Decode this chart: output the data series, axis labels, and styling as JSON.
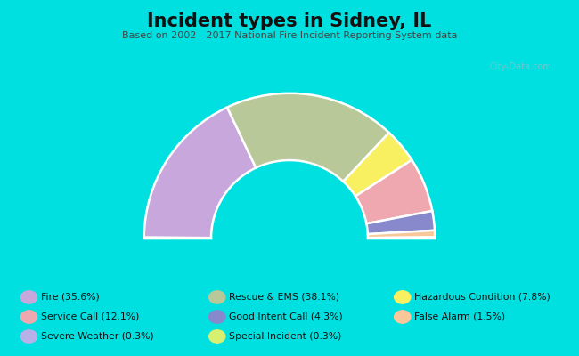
{
  "title": "Incident types in Sidney, IL",
  "subtitle": "Based on 2002 - 2017 National Fire Incident Reporting System data",
  "background_color": "#00e0e0",
  "chart_bg_color": "#e8edd8",
  "segment_order": [
    {
      "label": "Severe Weather",
      "value": 0.3,
      "color": "#b8b0e8"
    },
    {
      "label": "Fire",
      "value": 35.6,
      "color": "#c8a8dc"
    },
    {
      "label": "Rescue & EMS",
      "value": 38.1,
      "color": "#b8c898"
    },
    {
      "label": "Hazardous",
      "value": 7.8,
      "color": "#f8f060"
    },
    {
      "label": "Service Call",
      "value": 12.1,
      "color": "#f0a8b0"
    },
    {
      "label": "Good Intent",
      "value": 4.3,
      "color": "#8888cc"
    },
    {
      "label": "False Alarm",
      "value": 1.5,
      "color": "#f8c89a"
    },
    {
      "label": "Special",
      "value": 0.3,
      "color": "#d8f070"
    }
  ],
  "legend": [
    {
      "label": "Fire (35.6%)",
      "color": "#c8a8dc"
    },
    {
      "label": "Service Call (12.1%)",
      "color": "#f0a8b0"
    },
    {
      "label": "Severe Weather (0.3%)",
      "color": "#b8b0e8"
    },
    {
      "label": "Rescue & EMS (38.1%)",
      "color": "#b8c898"
    },
    {
      "label": "Good Intent Call (4.3%)",
      "color": "#8888cc"
    },
    {
      "label": "Special Incident (0.3%)",
      "color": "#d8f070"
    },
    {
      "label": "Hazardous Condition (7.8%)",
      "color": "#f8f060"
    },
    {
      "label": "False Alarm (1.5%)",
      "color": "#f8c89a"
    }
  ],
  "title_fontsize": 15,
  "subtitle_fontsize": 8,
  "outer_r": 1.15,
  "inner_r": 0.62
}
